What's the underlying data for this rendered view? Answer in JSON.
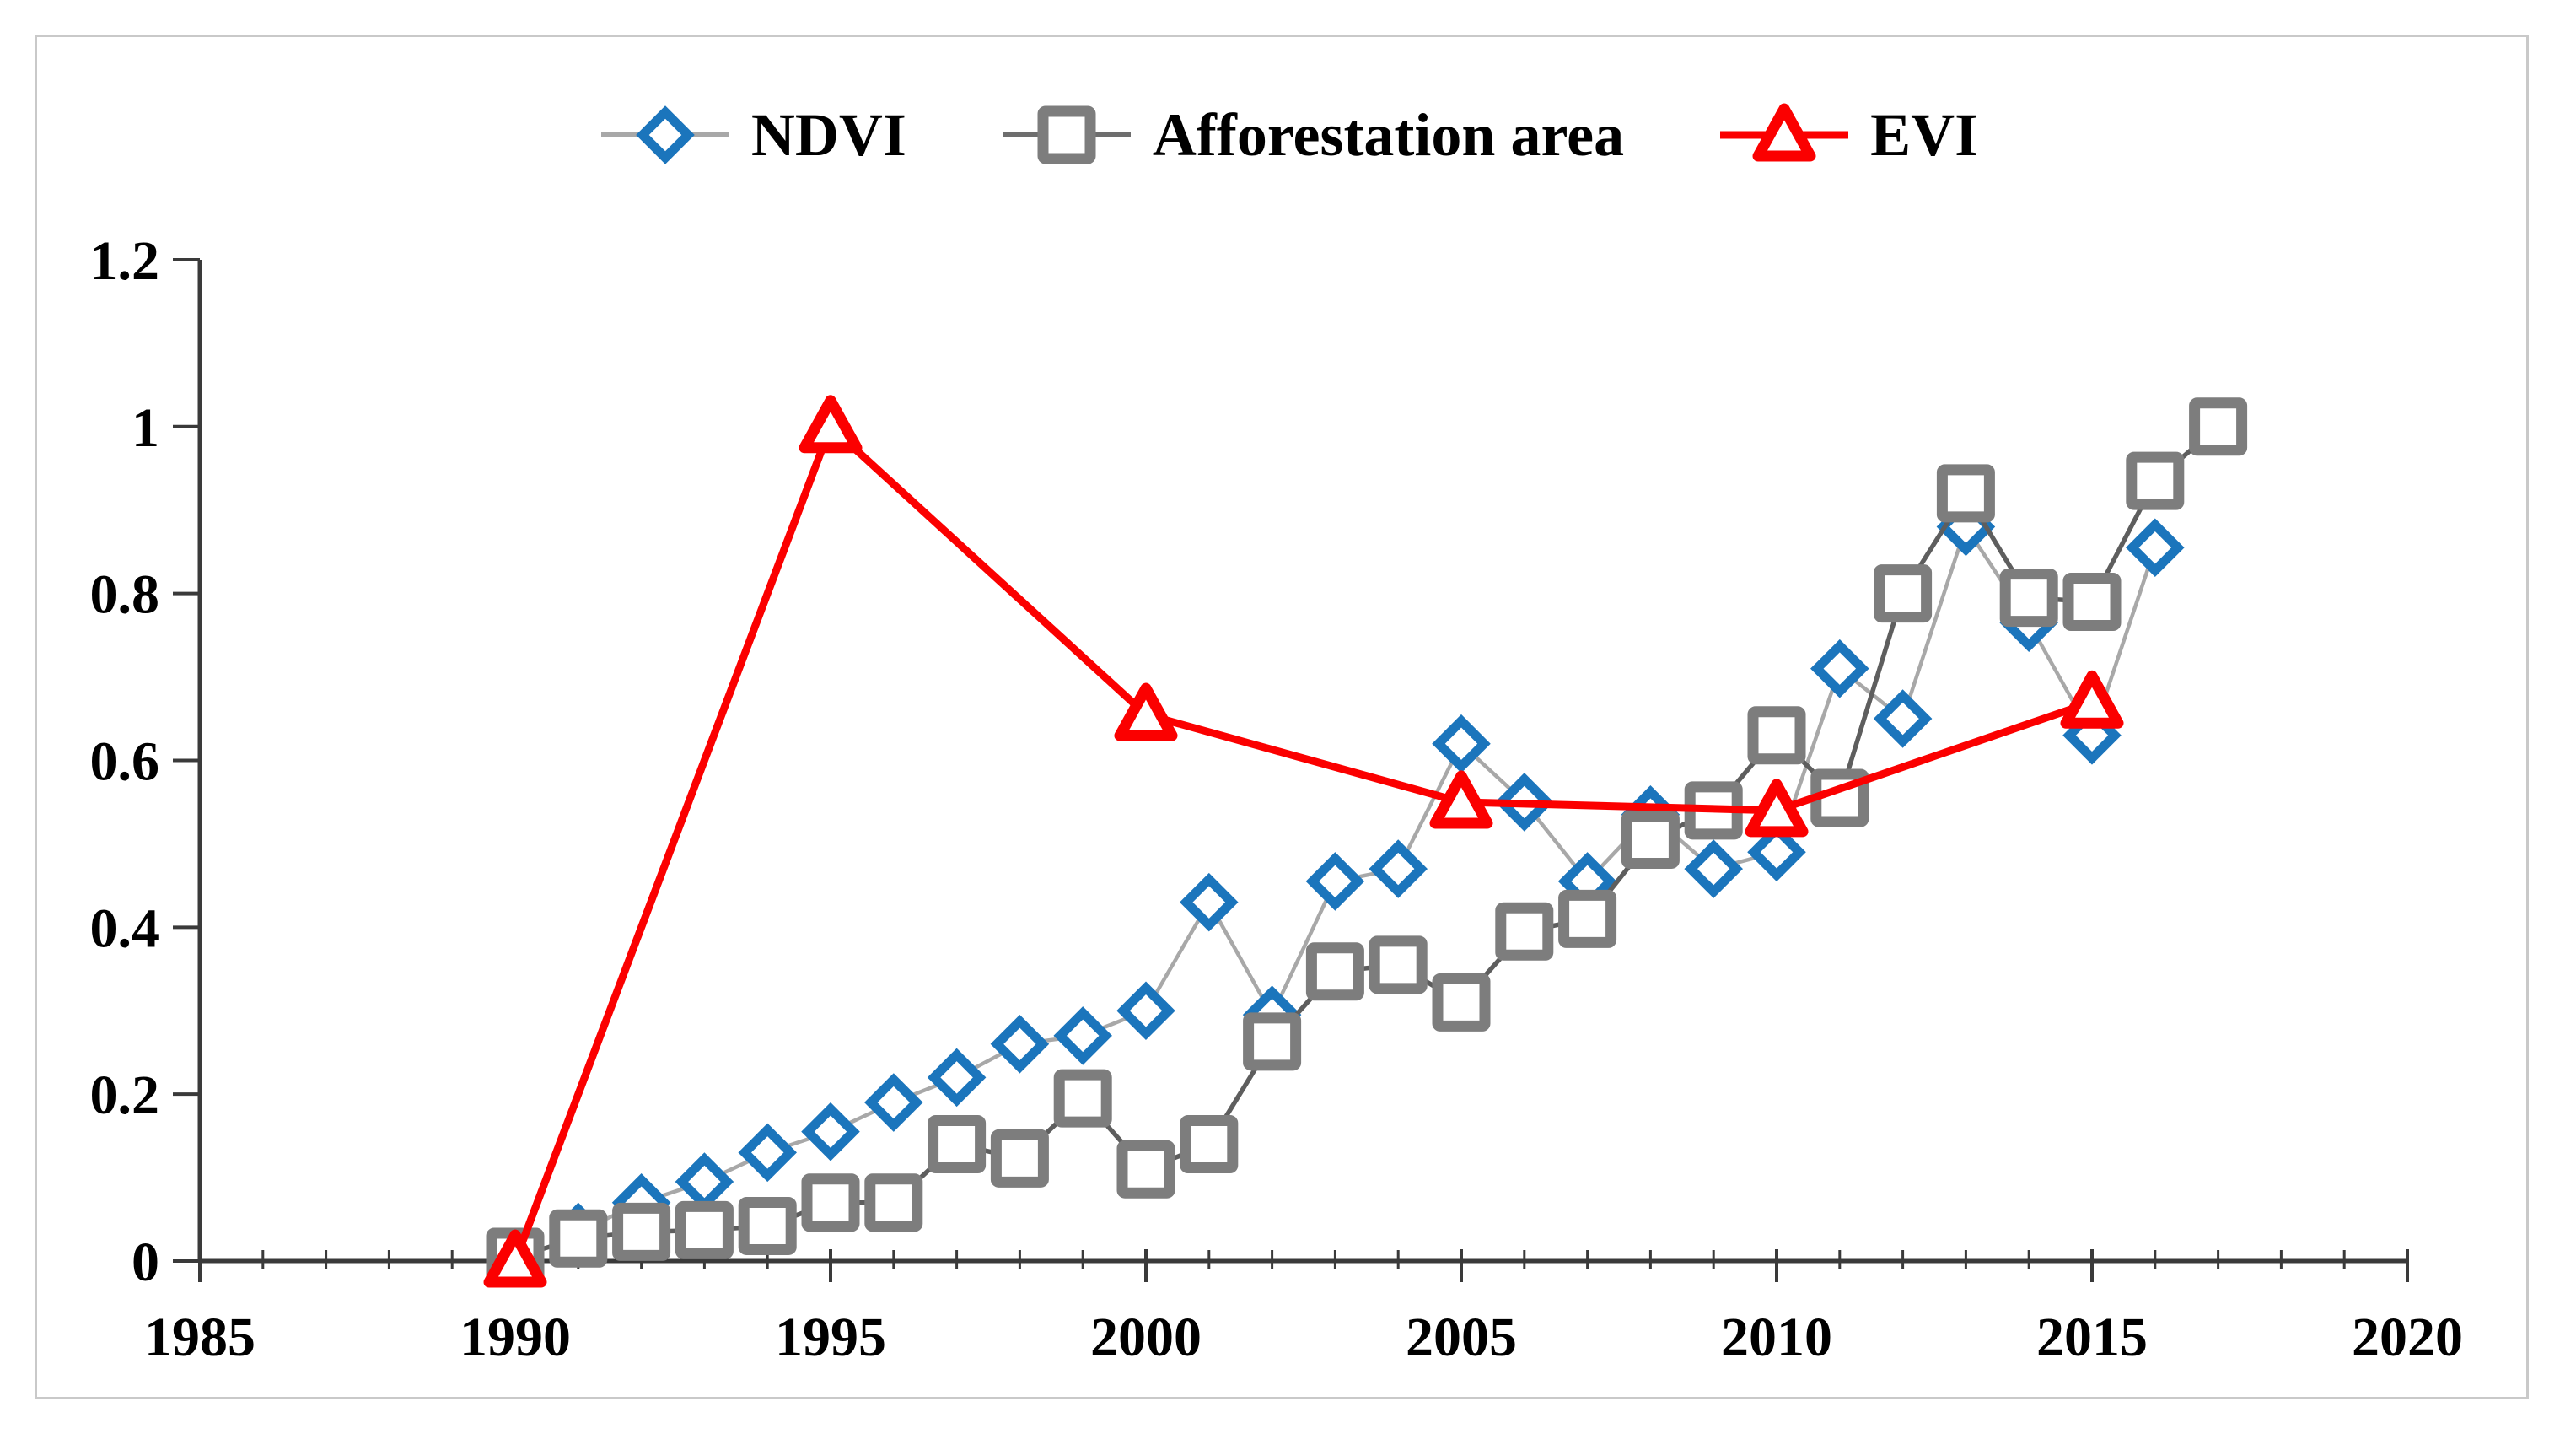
{
  "figure": {
    "background_color": "#ffffff",
    "frame_color": "#c9c9c9",
    "axis_color": "#3a3a3a",
    "tick_label_color": "#000000"
  },
  "legend": {
    "items": [
      {
        "label": "NDVI",
        "marker": "diamond",
        "marker_color": "#1b75bc",
        "line_color": "#a8a8a8"
      },
      {
        "label": "Afforestation area",
        "marker": "square",
        "marker_color": "#7d7d7d",
        "line_color": "#6e6e6e"
      },
      {
        "label": "EVI",
        "marker": "triangle",
        "marker_color": "#fb0000",
        "line_color": "#fb0000"
      }
    ]
  },
  "chart_data": {
    "type": "line",
    "title": "",
    "xlabel": "",
    "ylabel": "",
    "xlim": [
      1985,
      2020
    ],
    "ylim": [
      0,
      1.2
    ],
    "grid": false,
    "legend_position": "top-center",
    "x_ticks": [
      1985,
      1990,
      1995,
      2000,
      2005,
      2010,
      2015,
      2020
    ],
    "x_tick_labels": [
      "1985",
      "1990",
      "1995",
      "2000",
      "2005",
      "2010",
      "2015",
      "2020"
    ],
    "y_ticks": [
      0,
      0.2,
      0.4,
      0.6,
      0.8,
      1,
      1.2
    ],
    "y_tick_labels": [
      "0",
      "0.2",
      "0.4",
      "0.6",
      "0.8",
      "1",
      "1.2"
    ],
    "series": [
      {
        "name": "NDVI",
        "marker": "diamond",
        "marker_color": "#1b75bc",
        "line_color": "#a8a8a8",
        "x": [
          1991,
          1992,
          1993,
          1994,
          1995,
          1996,
          1997,
          1998,
          1999,
          2000,
          2001,
          2002,
          2003,
          2004,
          2005,
          2006,
          2007,
          2008,
          2009,
          2010,
          2011,
          2012,
          2013,
          2014,
          2015,
          2016
        ],
        "y": [
          0.035,
          0.07,
          0.095,
          0.13,
          0.155,
          0.19,
          0.22,
          0.26,
          0.27,
          0.3,
          0.43,
          0.295,
          0.455,
          0.47,
          0.62,
          0.55,
          0.455,
          0.535,
          0.47,
          0.49,
          0.71,
          0.65,
          0.88,
          0.765,
          0.63,
          0.855
        ]
      },
      {
        "name": "Afforestation area",
        "marker": "square",
        "marker_color": "#7d7d7d",
        "line_color": "#5e5e5e",
        "x": [
          1990,
          1991,
          1992,
          1993,
          1994,
          1995,
          1996,
          1997,
          1998,
          1999,
          2000,
          2001,
          2002,
          2003,
          2004,
          2005,
          2006,
          2007,
          2008,
          2009,
          2010,
          2011,
          2012,
          2013,
          2014,
          2015,
          2016,
          2017
        ],
        "y": [
          0.005,
          0.027,
          0.035,
          0.037,
          0.042,
          0.07,
          0.07,
          0.14,
          0.123,
          0.195,
          0.11,
          0.14,
          0.263,
          0.347,
          0.355,
          0.31,
          0.395,
          0.41,
          0.505,
          0.54,
          0.63,
          0.555,
          0.8,
          0.92,
          0.795,
          0.79,
          0.935,
          1.0
        ]
      },
      {
        "name": "EVI",
        "marker": "triangle",
        "marker_color": "#fb0000",
        "line_color": "#fb0000",
        "x": [
          1990,
          1995,
          2000,
          2005,
          2010,
          2015
        ],
        "y": [
          0.0,
          1.0,
          0.655,
          0.55,
          0.54,
          0.67
        ]
      }
    ]
  }
}
